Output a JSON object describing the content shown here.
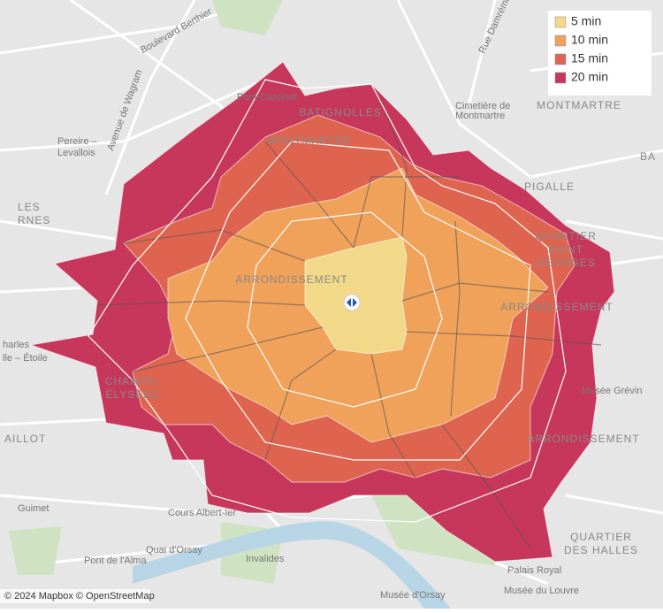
{
  "legend": {
    "items": [
      {
        "label": "5 min",
        "color": "#f2d98a"
      },
      {
        "label": "10 min",
        "color": "#f0a15a"
      },
      {
        "label": "15 min",
        "color": "#df6450"
      },
      {
        "label": "20 min",
        "color": "#c7375b"
      }
    ]
  },
  "labels": [
    "Boulevard Berthier",
    "Pont-Cardinet",
    "BATIGNOLLES",
    "Cimetière de",
    "Montmartre",
    "Rue Damrémont",
    "MONTMARTRE",
    "Pereire –",
    "Levallois",
    "Avenue de Wagram",
    "PIGALLE",
    "QUARTIER",
    "SAINT",
    "GEORGES",
    "ARRONDISSEMENT",
    "ARRONDISSEMENT",
    "Musée Grévin",
    "ARRONDISSEMENT",
    "LES",
    "RNES",
    "harles",
    "lle – Étoile",
    "AILLOT",
    "Guimet",
    "Cours Albert-Ier",
    "Quai d'Orsay",
    "Pont de l'Alma",
    "Invalides",
    "Musée d'Orsay",
    "Musée du Louvre",
    "Palais Royal",
    "QUARTIER",
    "DES HALLES",
    "CHAMPS-",
    "ÉLYSÉES",
    "MONTMARTRE",
    "BA"
  ],
  "attribution": "© 2024 Mapbox © OpenStreetMap"
}
